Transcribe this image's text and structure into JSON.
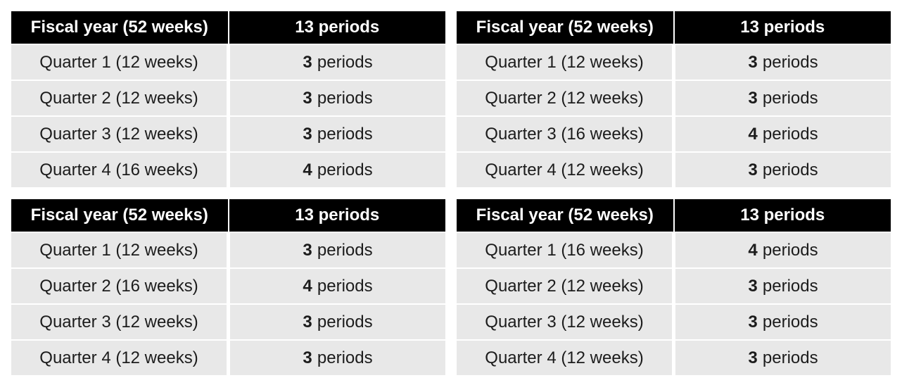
{
  "colors": {
    "page_bg": "#ffffff",
    "header_bg": "#000000",
    "header_text": "#ffffff",
    "row_bg": "#e8e8e8",
    "row_text": "#1c1c1c"
  },
  "labels": {
    "fiscal_year_header": "Fiscal year (52 weeks)",
    "periods_header": "13 periods",
    "periods_unit": "periods"
  },
  "tables": [
    {
      "rows": [
        {
          "quarter": "Quarter 1 (12 weeks)",
          "periods": "3"
        },
        {
          "quarter": "Quarter 2 (12 weeks)",
          "periods": "3"
        },
        {
          "quarter": "Quarter 3 (12 weeks)",
          "periods": "3"
        },
        {
          "quarter": "Quarter 4 (16 weeks)",
          "periods": "4"
        }
      ]
    },
    {
      "rows": [
        {
          "quarter": "Quarter 1 (12 weeks)",
          "periods": "3"
        },
        {
          "quarter": "Quarter 2 (12 weeks)",
          "periods": "3"
        },
        {
          "quarter": "Quarter 3 (16 weeks)",
          "periods": "4"
        },
        {
          "quarter": "Quarter 4 (12 weeks)",
          "periods": "3"
        }
      ]
    },
    {
      "rows": [
        {
          "quarter": "Quarter 1 (12 weeks)",
          "periods": "3"
        },
        {
          "quarter": "Quarter 2 (16 weeks)",
          "periods": "4"
        },
        {
          "quarter": "Quarter 3 (12 weeks)",
          "periods": "3"
        },
        {
          "quarter": "Quarter 4 (12 weeks)",
          "periods": "3"
        }
      ]
    },
    {
      "rows": [
        {
          "quarter": "Quarter 1 (16 weeks)",
          "periods": "4"
        },
        {
          "quarter": "Quarter 2 (12 weeks)",
          "periods": "3"
        },
        {
          "quarter": "Quarter 3 (12 weeks)",
          "periods": "3"
        },
        {
          "quarter": "Quarter 4 (12 weeks)",
          "periods": "3"
        }
      ]
    }
  ]
}
